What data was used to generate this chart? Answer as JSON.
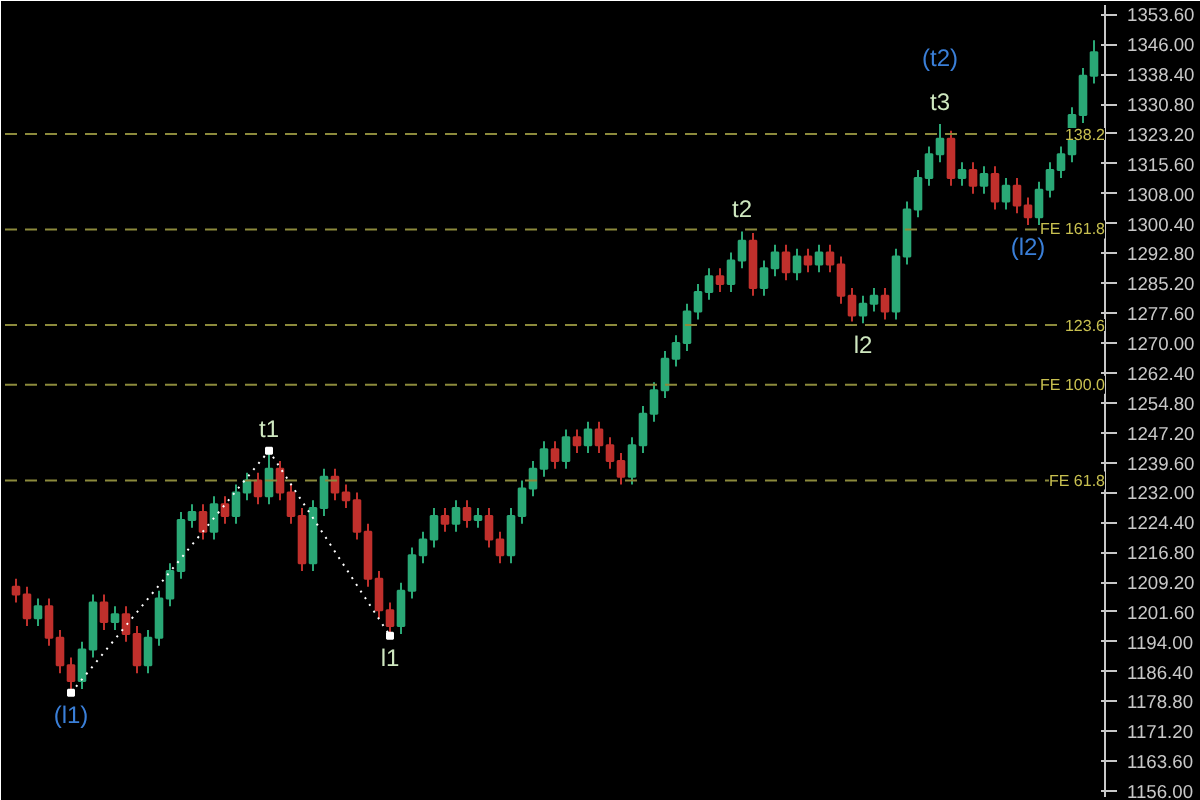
{
  "chart_data": {
    "type": "candlestick",
    "categories": [
      null,
      null,
      null,
      null,
      null,
      null,
      null,
      null,
      null,
      null,
      null,
      null,
      null,
      null,
      null,
      null,
      null,
      null,
      null,
      null,
      null,
      null,
      null,
      null,
      null,
      null,
      null,
      null,
      null,
      null,
      null,
      null,
      null,
      null,
      null,
      null,
      null,
      null,
      null,
      null,
      null,
      null,
      null,
      null,
      null,
      null,
      null,
      null,
      null,
      null,
      null,
      null,
      null,
      null,
      null,
      null,
      null,
      null,
      null,
      null,
      null,
      null,
      null,
      null,
      null,
      null,
      null,
      null,
      null,
      null,
      null,
      null,
      null,
      null,
      null,
      null,
      null,
      null,
      null,
      null,
      null,
      null,
      null,
      null,
      null,
      null,
      null,
      null,
      null,
      null,
      null,
      null,
      null,
      null,
      null,
      null,
      null,
      null,
      null
    ],
    "ohlc": [
      [
        1208,
        1210,
        1204,
        1206
      ],
      [
        1206,
        1208,
        1198,
        1200
      ],
      [
        1200,
        1205,
        1198,
        1203
      ],
      [
        1203,
        1205,
        1193,
        1195
      ],
      [
        1195,
        1197,
        1186,
        1188
      ],
      [
        1188,
        1190,
        1181,
        1184
      ],
      [
        1184,
        1194,
        1182,
        1192
      ],
      [
        1192,
        1206,
        1190,
        1204
      ],
      [
        1204,
        1206,
        1197,
        1199
      ],
      [
        1199,
        1203,
        1197,
        1201
      ],
      [
        1201,
        1203,
        1194,
        1196
      ],
      [
        1196,
        1198,
        1186,
        1188
      ],
      [
        1188,
        1197,
        1186,
        1195
      ],
      [
        1195,
        1207,
        1193,
        1205
      ],
      [
        1205,
        1214,
        1203,
        1212
      ],
      [
        1212,
        1227,
        1210,
        1225
      ],
      [
        1225,
        1229,
        1223,
        1227
      ],
      [
        1227,
        1229,
        1220,
        1222
      ],
      [
        1222,
        1231,
        1220,
        1229
      ],
      [
        1229,
        1231,
        1224,
        1226
      ],
      [
        1226,
        1234,
        1224,
        1232
      ],
      [
        1232,
        1237,
        1230,
        1235
      ],
      [
        1235,
        1237,
        1229,
        1231
      ],
      [
        1231,
        1242.6,
        1229,
        1238
      ],
      [
        1238,
        1240,
        1230,
        1232
      ],
      [
        1232,
        1234,
        1224,
        1226
      ],
      [
        1226,
        1228,
        1212,
        1214
      ],
      [
        1214,
        1230,
        1212,
        1228
      ],
      [
        1228,
        1238,
        1226,
        1236
      ],
      [
        1236,
        1238,
        1230,
        1232
      ],
      [
        1232,
        1234,
        1228,
        1230
      ],
      [
        1230,
        1232,
        1220,
        1222
      ],
      [
        1222,
        1224,
        1208,
        1210
      ],
      [
        1210,
        1212,
        1200,
        1202
      ],
      [
        1202,
        1204,
        1195.5,
        1198
      ],
      [
        1198,
        1209,
        1196,
        1207
      ],
      [
        1207,
        1218,
        1205,
        1216
      ],
      [
        1216,
        1222,
        1214,
        1220
      ],
      [
        1220,
        1228,
        1218,
        1226
      ],
      [
        1226,
        1228,
        1222,
        1224
      ],
      [
        1224,
        1230,
        1222,
        1228
      ],
      [
        1228,
        1230,
        1223,
        1225
      ],
      [
        1225,
        1228,
        1223,
        1226
      ],
      [
        1226,
        1228,
        1218,
        1220
      ],
      [
        1220,
        1222,
        1214,
        1216
      ],
      [
        1216,
        1228,
        1214,
        1226
      ],
      [
        1226,
        1235,
        1224,
        1233
      ],
      [
        1233,
        1240,
        1231,
        1238
      ],
      [
        1238,
        1245,
        1236,
        1243
      ],
      [
        1243,
        1245,
        1238,
        1240
      ],
      [
        1240,
        1248,
        1238,
        1246
      ],
      [
        1246,
        1248,
        1242,
        1244
      ],
      [
        1244,
        1250,
        1242,
        1248
      ],
      [
        1248,
        1250,
        1242,
        1244
      ],
      [
        1244,
        1246,
        1238,
        1240
      ],
      [
        1240,
        1242,
        1234,
        1236
      ],
      [
        1236,
        1246,
        1234,
        1244
      ],
      [
        1244,
        1254,
        1242,
        1252
      ],
      [
        1252,
        1260,
        1250,
        1258
      ],
      [
        1258,
        1268,
        1256,
        1266
      ],
      [
        1266,
        1272,
        1264,
        1270
      ],
      [
        1270,
        1280,
        1268,
        1278
      ],
      [
        1278,
        1285,
        1276,
        1283
      ],
      [
        1283,
        1289,
        1281,
        1287
      ],
      [
        1287,
        1289,
        1283,
        1285
      ],
      [
        1285,
        1293,
        1283,
        1291
      ],
      [
        1291,
        1298.4,
        1289,
        1296
      ],
      [
        1296,
        1298,
        1282,
        1284
      ],
      [
        1284,
        1291,
        1282,
        1289
      ],
      [
        1289,
        1295,
        1287,
        1293
      ],
      [
        1293,
        1295,
        1286,
        1288
      ],
      [
        1288,
        1294,
        1286,
        1292
      ],
      [
        1292,
        1294,
        1288,
        1290
      ],
      [
        1290,
        1295,
        1288,
        1293
      ],
      [
        1293,
        1295,
        1288,
        1290
      ],
      [
        1290,
        1292,
        1280,
        1282
      ],
      [
        1282,
        1284,
        1275.5,
        1277
      ],
      [
        1277,
        1282,
        1275,
        1280
      ],
      [
        1280,
        1284,
        1278,
        1282
      ],
      [
        1282,
        1284,
        1276,
        1278
      ],
      [
        1278,
        1294,
        1276,
        1292
      ],
      [
        1292,
        1306,
        1290,
        1304
      ],
      [
        1304,
        1314,
        1302,
        1312
      ],
      [
        1312,
        1320,
        1310,
        1318
      ],
      [
        1318,
        1325.7,
        1316,
        1322
      ],
      [
        1322,
        1324,
        1310,
        1312
      ],
      [
        1312,
        1316,
        1310,
        1314
      ],
      [
        1314,
        1316,
        1308,
        1310
      ],
      [
        1310,
        1315,
        1308,
        1313
      ],
      [
        1313,
        1315,
        1304,
        1306
      ],
      [
        1306,
        1312,
        1304,
        1310
      ],
      [
        1310,
        1312,
        1303,
        1305
      ],
      [
        1305,
        1307,
        1300,
        1302
      ],
      [
        1302,
        1311,
        1300,
        1309
      ],
      [
        1309,
        1316,
        1307,
        1314
      ],
      [
        1314,
        1320,
        1312,
        1318
      ],
      [
        1318,
        1330,
        1316,
        1328
      ],
      [
        1328,
        1340,
        1326,
        1338
      ],
      [
        1338,
        1347,
        1336,
        1344
      ]
    ],
    "colors": [
      "#c0302c",
      "#c0302c",
      "#2aa876",
      "#c0302c",
      "#c0302c",
      "#c0302c",
      "#2aa876",
      "#2aa876",
      "#c0302c",
      "#2aa876",
      "#c0302c",
      "#c0302c",
      "#2aa876",
      "#2aa876",
      "#2aa876",
      "#2aa876",
      "#2aa876",
      "#c0302c",
      "#2aa876",
      "#c0302c",
      "#2aa876",
      "#2aa876",
      "#c0302c",
      "#2aa876",
      "#c0302c",
      "#c0302c",
      "#c0302c",
      "#2aa876",
      "#2aa876",
      "#c0302c",
      "#c0302c",
      "#c0302c",
      "#c0302c",
      "#c0302c",
      "#c0302c",
      "#2aa876",
      "#2aa876",
      "#2aa876",
      "#2aa876",
      "#c0302c",
      "#2aa876",
      "#c0302c",
      "#2aa876",
      "#c0302c",
      "#c0302c",
      "#2aa876",
      "#2aa876",
      "#2aa876",
      "#2aa876",
      "#c0302c",
      "#2aa876",
      "#c0302c",
      "#2aa876",
      "#c0302c",
      "#c0302c",
      "#c0302c",
      "#2aa876",
      "#2aa876",
      "#2aa876",
      "#2aa876",
      "#2aa876",
      "#2aa876",
      "#2aa876",
      "#2aa876",
      "#c0302c",
      "#2aa876",
      "#2aa876",
      "#c0302c",
      "#2aa876",
      "#2aa876",
      "#c0302c",
      "#2aa876",
      "#c0302c",
      "#2aa876",
      "#c0302c",
      "#c0302c",
      "#c0302c",
      "#2aa876",
      "#2aa876",
      "#c0302c",
      "#2aa876",
      "#2aa876",
      "#2aa876",
      "#2aa876",
      "#2aa876",
      "#c0302c",
      "#2aa876",
      "#c0302c",
      "#2aa876",
      "#c0302c",
      "#2aa876",
      "#c0302c",
      "#c0302c",
      "#2aa876",
      "#2aa876",
      "#2aa876",
      "#2aa876",
      "#2aa876",
      "#2aa876"
    ],
    "ylim": [
      1154.5,
      1356
    ],
    "yticks": [
      {
        "value": 1156.0,
        "label": "1156.00"
      },
      {
        "value": 1163.6,
        "label": "1163.60"
      },
      {
        "value": 1171.2,
        "label": "1171.20"
      },
      {
        "value": 1178.8,
        "label": "1178.80"
      },
      {
        "value": 1186.4,
        "label": "1186.40"
      },
      {
        "value": 1194.0,
        "label": "1194.00"
      },
      {
        "value": 1201.6,
        "label": "1201.60"
      },
      {
        "value": 1209.2,
        "label": "1209.20"
      },
      {
        "value": 1216.8,
        "label": "1216.80"
      },
      {
        "value": 1224.4,
        "label": "1224.40"
      },
      {
        "value": 1232.0,
        "label": "1232.00"
      },
      {
        "value": 1239.6,
        "label": "1239.60"
      },
      {
        "value": 1247.2,
        "label": "1247.20"
      },
      {
        "value": 1254.8,
        "label": "1254.80"
      },
      {
        "value": 1262.4,
        "label": "1262.40"
      },
      {
        "value": 1270.0,
        "label": "1270.00"
      },
      {
        "value": 1277.6,
        "label": "1277.60"
      },
      {
        "value": 1285.2,
        "label": "1285.20"
      },
      {
        "value": 1292.8,
        "label": "1292.80"
      },
      {
        "value": 1300.4,
        "label": "1300.40"
      },
      {
        "value": 1308.0,
        "label": "1308.00"
      },
      {
        "value": 1315.6,
        "label": "1315.60"
      },
      {
        "value": 1323.2,
        "label": "1323.20"
      },
      {
        "value": 1330.8,
        "label": "1330.80"
      },
      {
        "value": 1338.4,
        "label": "1338.40"
      },
      {
        "value": 1346.0,
        "label": "1346.00"
      },
      {
        "value": 1353.6,
        "label": "1353.60"
      }
    ],
    "tick_labels": "y",
    "grid": false,
    "ref_lines": [
      {
        "axis": "y",
        "value": 1323.2,
        "color": "#8c8a3c",
        "line_style": "dashed"
      },
      {
        "axis": "y",
        "value": 1298.9,
        "color": "#8c8a3c",
        "line_style": "dashed"
      },
      {
        "axis": "y",
        "value": 1274.6,
        "color": "#8c8a3c",
        "line_style": "dashed"
      },
      {
        "axis": "y",
        "value": 1259.4,
        "color": "#8c8a3c",
        "line_style": "dashed"
      },
      {
        "axis": "y",
        "value": 1235.0,
        "color": "#8c8a3c",
        "line_style": "dashed"
      }
    ],
    "annotations": [
      {
        "text": "(l1)",
        "y": 1181
      },
      {
        "text": "t1",
        "y": 1242.6
      },
      {
        "text": "l1",
        "y": 1195.5
      },
      {
        "text": "t2",
        "y": 1298.4
      },
      {
        "text": "l2",
        "y": 1275
      },
      {
        "text": "t3",
        "y": 1325.7
      },
      {
        "text": "(t2)",
        "y": 1325.7
      },
      {
        "text": "(l2)",
        "y": 1300
      },
      {
        "text": "138.2",
        "y": 1323.2
      },
      {
        "text": "FE 161.8",
        "y": 1298.9
      },
      {
        "text": "123.6",
        "y": 1274.6
      },
      {
        "text": "FE 100.0",
        "y": 1259.4
      },
      {
        "text": "FE 61.8",
        "y": 1235.0
      }
    ]
  }
}
